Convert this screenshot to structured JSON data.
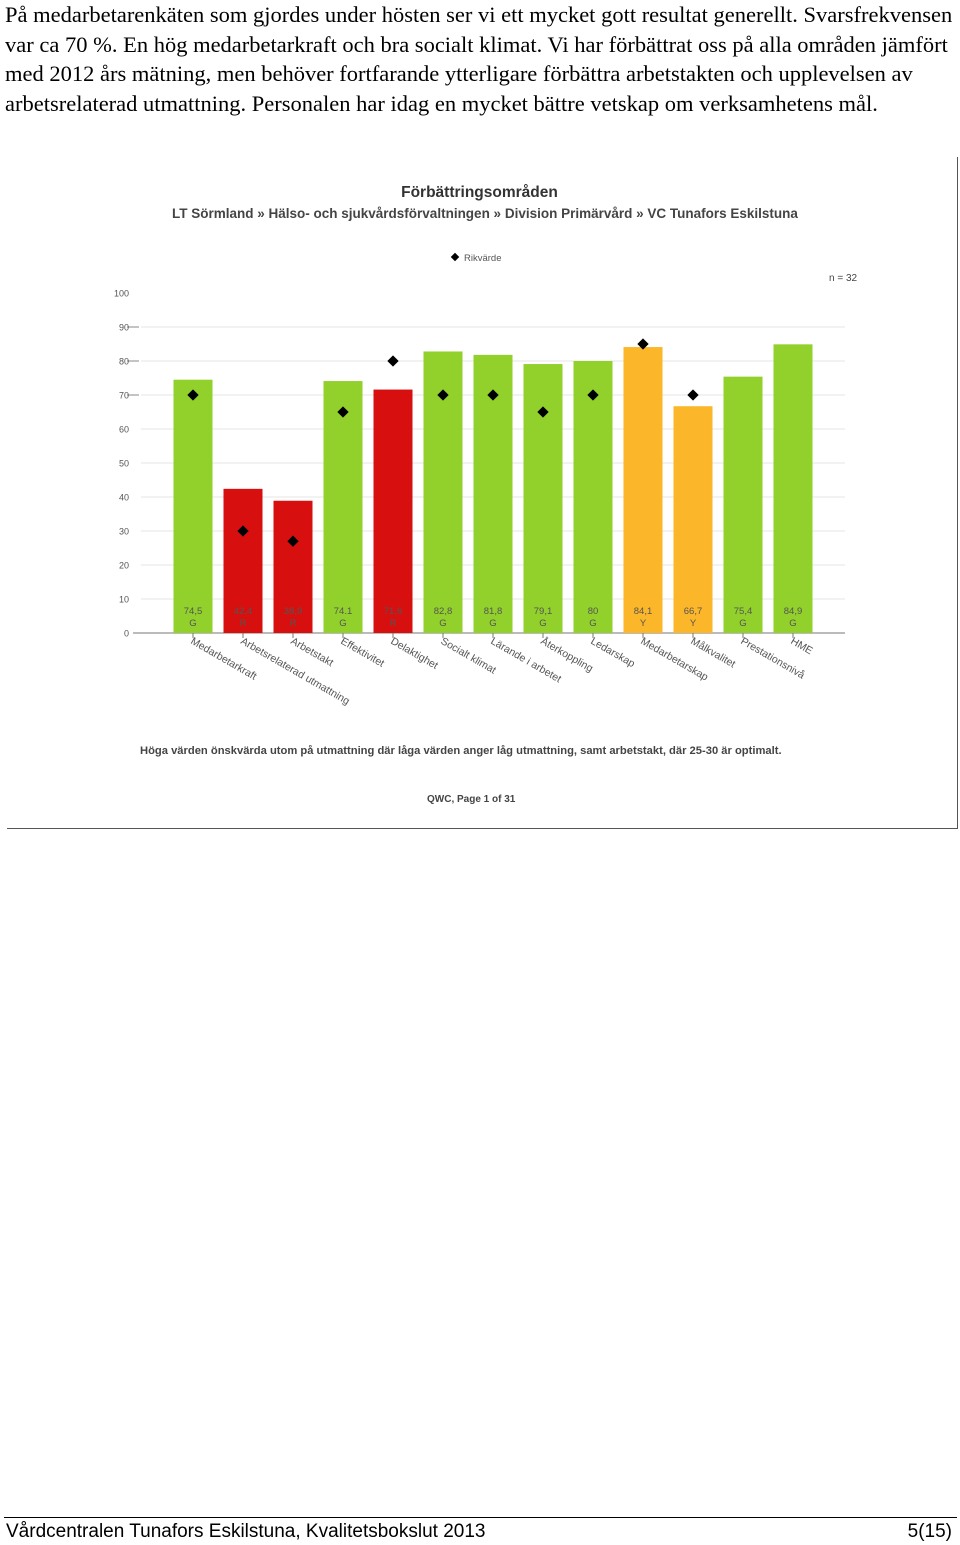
{
  "document": {
    "intro_text": "På medarbetarenkäten som gjordes under hösten ser vi ett mycket gott resultat generellt. Svarsfrekvensen var ca 70 %. En hög medarbetarkraft och bra socialt klimat. Vi har förbättrat oss på alla områden jämfört med 2012 års mätning, men behöver fortfarande ytterligare förbättra arbetstakten och upplevelsen av arbetsrelaterad utmattning. Personalen har idag en mycket bättre vetskap om verksamhetens mål.",
    "footer_left": "Vårdcentralen Tunafors Eskilstuna, Kvalitetsbokslut 2013",
    "footer_right": "5(15)"
  },
  "figure": {
    "title": "Förbättringsområden",
    "subtitle": "LT Sörmland » Hälso- och sjukvårdsförvaltningen » Division Primärvård » VC Tunafors Eskilstuna",
    "legend_label": "Rikvärde",
    "n_label": "n = 32",
    "footnote": "Höga värden önskvärda utom på utmattning där låga värden anger låg utmattning, samt arbetstakt, där 25-30 är optimalt.",
    "page_info": "QWC, Page 1 of 31"
  },
  "colors": {
    "G": "#92d02b",
    "R": "#d7100f",
    "Y": "#fbb62a",
    "marker": "#000000"
  },
  "chart_data": {
    "type": "bar",
    "title": "Förbättringsområden",
    "ylim": [
      0,
      100
    ],
    "yticks": [
      0,
      10,
      20,
      30,
      40,
      50,
      60,
      70,
      80,
      90,
      100
    ],
    "grid": true,
    "legend": "top-center",
    "categories": [
      "Medarbetarkraft",
      "Arbetsrelaterad utmattning",
      "Arbetstakt",
      "Effektivitet",
      "Delaktighet",
      "Socialt klimat",
      "Lärande i arbetet",
      "Återkoppling",
      "Ledarskap",
      "Medarbetarskap",
      "Målkvalitet",
      "Prestationsnivå",
      "HME"
    ],
    "values": [
      74.5,
      42.4,
      38.9,
      74.1,
      71.6,
      82.8,
      81.8,
      79.1,
      80,
      84.1,
      66.7,
      75.4,
      84.9
    ],
    "value_labels": [
      "74,5",
      "42,4",
      "38,9",
      "74.1",
      "71,6",
      "82,8",
      "81,8",
      "79,1",
      "80",
      "84,1",
      "66,7",
      "75,4",
      "84,9"
    ],
    "grades": [
      "G",
      "R",
      "R",
      "G",
      "R",
      "G",
      "G",
      "G",
      "G",
      "Y",
      "Y",
      "G",
      "G"
    ],
    "reference": {
      "name": "Rikvärde",
      "values": [
        70,
        30,
        27,
        65,
        80,
        70,
        70,
        65,
        70,
        85,
        70,
        null,
        null
      ]
    }
  }
}
